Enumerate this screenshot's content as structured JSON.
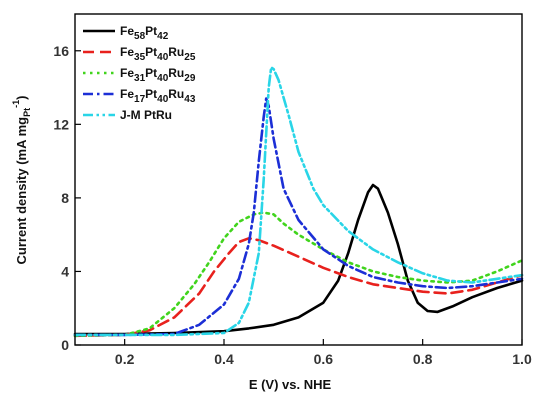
{
  "chart_data": {
    "type": "line",
    "xlabel": "E (V) vs. NHE",
    "ylabel": "Current density (mA mg",
    "ylabel_sub": "Pt",
    "ylabel_sup": "-1",
    "ylabel_end": ")",
    "xlim": [
      0.1,
      1.0
    ],
    "ylim": [
      0,
      18
    ],
    "x_ticks": [
      0.2,
      0.4,
      0.6,
      0.8,
      1.0
    ],
    "x_tick_labels": [
      "0.2",
      "0.4",
      "0.6",
      "0.8",
      "1.0"
    ],
    "y_ticks": [
      0,
      4,
      8,
      12,
      16
    ],
    "y_tick_labels": [
      "0",
      "4",
      "8",
      "12",
      "16"
    ],
    "grid": false,
    "legend_position": "top-left",
    "series": [
      {
        "name": "Fe58Pt42",
        "label_parts": [
          [
            "Fe",
            ""
          ],
          [
            "58",
            "sub"
          ],
          [
            "Pt",
            ""
          ],
          [
            "42",
            "sub"
          ]
        ],
        "color": "#000000",
        "dash": "solid",
        "points": [
          [
            0.1,
            0.6
          ],
          [
            0.2,
            0.6
          ],
          [
            0.3,
            0.65
          ],
          [
            0.4,
            0.75
          ],
          [
            0.45,
            0.9
          ],
          [
            0.5,
            1.1
          ],
          [
            0.55,
            1.5
          ],
          [
            0.6,
            2.3
          ],
          [
            0.63,
            3.5
          ],
          [
            0.65,
            5.0
          ],
          [
            0.67,
            6.8
          ],
          [
            0.69,
            8.3
          ],
          [
            0.7,
            8.7
          ],
          [
            0.71,
            8.5
          ],
          [
            0.73,
            7.2
          ],
          [
            0.75,
            5.5
          ],
          [
            0.77,
            3.5
          ],
          [
            0.79,
            2.3
          ],
          [
            0.81,
            1.85
          ],
          [
            0.83,
            1.8
          ],
          [
            0.86,
            2.1
          ],
          [
            0.9,
            2.6
          ],
          [
            0.95,
            3.1
          ],
          [
            1.0,
            3.5
          ]
        ]
      },
      {
        "name": "Fe35Pt40Ru25",
        "label_parts": [
          [
            "Fe",
            ""
          ],
          [
            "35",
            "sub"
          ],
          [
            "Pt",
            ""
          ],
          [
            "40",
            "sub"
          ],
          [
            "Ru",
            ""
          ],
          [
            "25",
            "sub"
          ]
        ],
        "color": "#e8211d",
        "dash": "long-dash",
        "points": [
          [
            0.1,
            0.5
          ],
          [
            0.2,
            0.55
          ],
          [
            0.25,
            0.8
          ],
          [
            0.3,
            1.5
          ],
          [
            0.35,
            2.8
          ],
          [
            0.38,
            4.0
          ],
          [
            0.41,
            5.0
          ],
          [
            0.43,
            5.6
          ],
          [
            0.45,
            5.8
          ],
          [
            0.47,
            5.7
          ],
          [
            0.5,
            5.4
          ],
          [
            0.55,
            4.8
          ],
          [
            0.6,
            4.2
          ],
          [
            0.65,
            3.7
          ],
          [
            0.7,
            3.3
          ],
          [
            0.75,
            3.1
          ],
          [
            0.8,
            2.9
          ],
          [
            0.85,
            2.8
          ],
          [
            0.9,
            3.0
          ],
          [
            0.95,
            3.4
          ],
          [
            1.0,
            3.8
          ]
        ]
      },
      {
        "name": "Fe31Pt40Ru29",
        "label_parts": [
          [
            "Fe",
            ""
          ],
          [
            "31",
            "sub"
          ],
          [
            "Pt",
            ""
          ],
          [
            "40",
            "sub"
          ],
          [
            "Ru",
            ""
          ],
          [
            "29",
            "sub"
          ]
        ],
        "color": "#41d41d",
        "dash": "dotted",
        "points": [
          [
            0.1,
            0.5
          ],
          [
            0.2,
            0.55
          ],
          [
            0.25,
            0.9
          ],
          [
            0.3,
            2.0
          ],
          [
            0.34,
            3.3
          ],
          [
            0.37,
            4.5
          ],
          [
            0.4,
            5.8
          ],
          [
            0.43,
            6.7
          ],
          [
            0.46,
            7.1
          ],
          [
            0.48,
            7.2
          ],
          [
            0.5,
            7.1
          ],
          [
            0.52,
            6.6
          ],
          [
            0.55,
            6.0
          ],
          [
            0.6,
            5.2
          ],
          [
            0.65,
            4.5
          ],
          [
            0.7,
            4.0
          ],
          [
            0.75,
            3.7
          ],
          [
            0.8,
            3.5
          ],
          [
            0.85,
            3.4
          ],
          [
            0.9,
            3.5
          ],
          [
            0.95,
            4.0
          ],
          [
            1.0,
            4.6
          ]
        ]
      },
      {
        "name": "Fe17Pt40Ru43",
        "label_parts": [
          [
            "Fe",
            ""
          ],
          [
            "17",
            "sub"
          ],
          [
            "Pt",
            ""
          ],
          [
            "40",
            "sub"
          ],
          [
            "Ru",
            ""
          ],
          [
            "43",
            "sub"
          ]
        ],
        "color": "#1c2fd6",
        "dash": "dash-dot",
        "points": [
          [
            0.1,
            0.55
          ],
          [
            0.2,
            0.55
          ],
          [
            0.3,
            0.6
          ],
          [
            0.35,
            1.1
          ],
          [
            0.4,
            2.2
          ],
          [
            0.43,
            3.6
          ],
          [
            0.45,
            5.5
          ],
          [
            0.46,
            7.2
          ],
          [
            0.47,
            10.0
          ],
          [
            0.48,
            12.4
          ],
          [
            0.485,
            13.4
          ],
          [
            0.49,
            13.0
          ],
          [
            0.5,
            11.2
          ],
          [
            0.52,
            8.5
          ],
          [
            0.55,
            6.8
          ],
          [
            0.6,
            5.2
          ],
          [
            0.65,
            4.3
          ],
          [
            0.7,
            3.7
          ],
          [
            0.75,
            3.4
          ],
          [
            0.8,
            3.2
          ],
          [
            0.85,
            3.1
          ],
          [
            0.9,
            3.2
          ],
          [
            0.95,
            3.4
          ],
          [
            1.0,
            3.6
          ]
        ]
      },
      {
        "name": "J-M PtRu",
        "label_parts": [
          [
            "J-M PtRu",
            ""
          ]
        ],
        "color": "#29d5e7",
        "dash": "dash-dot-dot",
        "points": [
          [
            0.1,
            0.55
          ],
          [
            0.2,
            0.55
          ],
          [
            0.3,
            0.55
          ],
          [
            0.4,
            0.65
          ],
          [
            0.43,
            1.2
          ],
          [
            0.45,
            2.3
          ],
          [
            0.47,
            5.0
          ],
          [
            0.48,
            9.0
          ],
          [
            0.49,
            14.0
          ],
          [
            0.495,
            15.1
          ],
          [
            0.5,
            15.0
          ],
          [
            0.51,
            14.4
          ],
          [
            0.53,
            12.5
          ],
          [
            0.55,
            10.5
          ],
          [
            0.58,
            8.5
          ],
          [
            0.6,
            7.6
          ],
          [
            0.65,
            6.2
          ],
          [
            0.7,
            5.2
          ],
          [
            0.75,
            4.5
          ],
          [
            0.8,
            3.9
          ],
          [
            0.85,
            3.5
          ],
          [
            0.9,
            3.4
          ],
          [
            0.95,
            3.6
          ],
          [
            1.0,
            3.8
          ]
        ]
      }
    ]
  }
}
